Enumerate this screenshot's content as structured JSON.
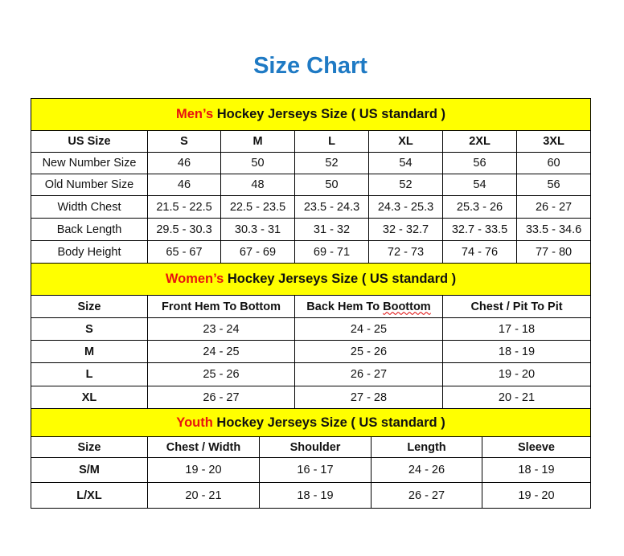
{
  "title": "Size Chart",
  "colors": {
    "title": "#1f7ac4",
    "header_bg": "#ffff00",
    "highlight": "#e8130f"
  },
  "mens": {
    "header_highlight": "Men’s",
    "header_rest": " Hockey Jerseys Size ( US standard )",
    "columns": [
      "US Size",
      "S",
      "M",
      "L",
      "XL",
      "2XL",
      "3XL"
    ],
    "rows": [
      [
        "New Number Size",
        "46",
        "50",
        "52",
        "54",
        "56",
        "60"
      ],
      [
        "Old Number Size",
        "46",
        "48",
        "50",
        "52",
        "54",
        "56"
      ],
      [
        "Width Chest",
        "21.5 - 22.5",
        "22.5 - 23.5",
        "23.5 - 24.3",
        "24.3 - 25.3",
        "25.3 - 26",
        "26 - 27"
      ],
      [
        "Back Length",
        "29.5 - 30.3",
        "30.3 - 31",
        "31 - 32",
        "32 - 32.7",
        "32.7 - 33.5",
        "33.5 - 34.6"
      ],
      [
        "Body Height",
        "65 - 67",
        "67 - 69",
        "69 - 71",
        "72 - 73",
        "74 - 76",
        "77 - 80"
      ]
    ]
  },
  "womens": {
    "header_highlight": "Women’s",
    "header_rest": " Hockey Jerseys Size ( US standard )",
    "columns": [
      "Size",
      "Front Hem To Bottom",
      "Back Hem To Boottom",
      "Chest / Pit To Pit"
    ],
    "rows": [
      [
        "S",
        "23 - 24",
        "24 - 25",
        "17 - 18"
      ],
      [
        "M",
        "24 - 25",
        "25 - 26",
        "18 - 19"
      ],
      [
        "L",
        "25 - 26",
        "26 - 27",
        "19 - 20"
      ],
      [
        "XL",
        "26 - 27",
        "27 - 28",
        "20 - 21"
      ]
    ]
  },
  "youth": {
    "header_highlight": "Youth",
    "header_rest": " Hockey Jerseys Size ( US standard )",
    "columns": [
      "Size",
      "Chest / Width",
      "Shoulder",
      "Length",
      "Sleeve"
    ],
    "rows": [
      [
        "S/M",
        "19 - 20",
        "16 - 17",
        "24 - 26",
        "18 - 19"
      ],
      [
        "L/XL",
        "20 - 21",
        "18 - 19",
        "26 - 27",
        "19 - 20"
      ]
    ]
  }
}
